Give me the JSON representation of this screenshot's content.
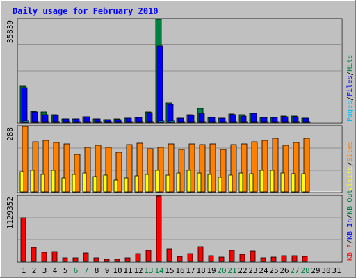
{
  "title": "Daily usage for February 2010",
  "colors": {
    "background": "#C0C0C0",
    "title": "#0000FF",
    "hits": "#008040",
    "files": "#0000FF",
    "pages": "#00C0FF",
    "visits": "#FFFF00",
    "sites": "#FF8000",
    "kbin": "#0000FF",
    "kbout": "#008040",
    "kbf": "#FF0000",
    "weekend_label": "#008040",
    "weekday_label": "#000000"
  },
  "chart_data": [
    {
      "type": "bar",
      "name": "hits-files-pages",
      "ymax_label": "35839",
      "ylim": [
        0,
        35839
      ],
      "legend": [
        "Pages",
        "Files",
        "Hits"
      ],
      "series": [
        {
          "name": "Hits",
          "values": [
            12700,
            3900,
            3700,
            2600,
            1300,
            1300,
            2000,
            1300,
            1000,
            1100,
            1500,
            1800,
            3600,
            35839,
            6700,
            1500,
            2600,
            4900,
            1800,
            1500,
            2900,
            2600,
            3200,
            1800,
            1800,
            2100,
            2100,
            1500
          ]
        },
        {
          "name": "Files",
          "values": [
            12000,
            3700,
            2700,
            2400,
            1200,
            1200,
            1900,
            1200,
            900,
            1000,
            1400,
            1700,
            3500,
            26600,
            6300,
            1400,
            2400,
            3100,
            1700,
            1400,
            2600,
            2300,
            3100,
            1700,
            1700,
            2000,
            2000,
            1400
          ]
        },
        {
          "name": "Pages",
          "values": [
            400,
            300,
            300,
            200,
            100,
            100,
            200,
            100,
            100,
            100,
            100,
            200,
            300,
            500,
            400,
            100,
            200,
            300,
            200,
            100,
            200,
            200,
            300,
            100,
            100,
            200,
            200,
            100
          ]
        }
      ]
    },
    {
      "type": "bar",
      "name": "sites-visits",
      "ymax_label": "288",
      "ylim": [
        0,
        288
      ],
      "legend": [
        "Visits",
        "Sites"
      ],
      "series": [
        {
          "name": "Sites",
          "values": [
            288,
            220,
            228,
            216,
            210,
            166,
            196,
            206,
            196,
            176,
            208,
            214,
            190,
            196,
            210,
            186,
            212,
            208,
            212,
            186,
            208,
            210,
            220,
            226,
            236,
            206,
            218,
            236
          ]
        },
        {
          "name": "Visits",
          "values": [
            88,
            96,
            78,
            94,
            62,
            78,
            82,
            66,
            74,
            52,
            60,
            70,
            76,
            96,
            72,
            84,
            96,
            84,
            76,
            64,
            74,
            84,
            80,
            96,
            96,
            84,
            80,
            80
          ]
        }
      ]
    },
    {
      "type": "bar",
      "name": "kbytes",
      "ymax_label": "1129352",
      "ylim": [
        0,
        1129352
      ],
      "legend": [
        "KB F",
        "KB In",
        "KB Out"
      ],
      "series": [
        {
          "name": "KB F",
          "values": [
            760000,
            242000,
            154000,
            165000,
            55000,
            66000,
            143000,
            55000,
            33000,
            33000,
            66000,
            132000,
            187000,
            1129352,
            220000,
            88000,
            132000,
            253000,
            99000,
            77000,
            198000,
            121000,
            176000,
            66000,
            77000,
            99000,
            99000,
            88000
          ]
        }
      ]
    }
  ],
  "x_labels": [
    "1",
    "2",
    "3",
    "4",
    "5",
    "6",
    "7",
    "8",
    "9",
    "10",
    "11",
    "12",
    "13",
    "14",
    "15",
    "16",
    "17",
    "18",
    "19",
    "20",
    "21",
    "22",
    "23",
    "24",
    "25",
    "26",
    "27",
    "28",
    "29",
    "30",
    "31"
  ],
  "weekend_days": [
    6,
    7,
    13,
    14,
    20,
    21,
    27,
    28
  ]
}
